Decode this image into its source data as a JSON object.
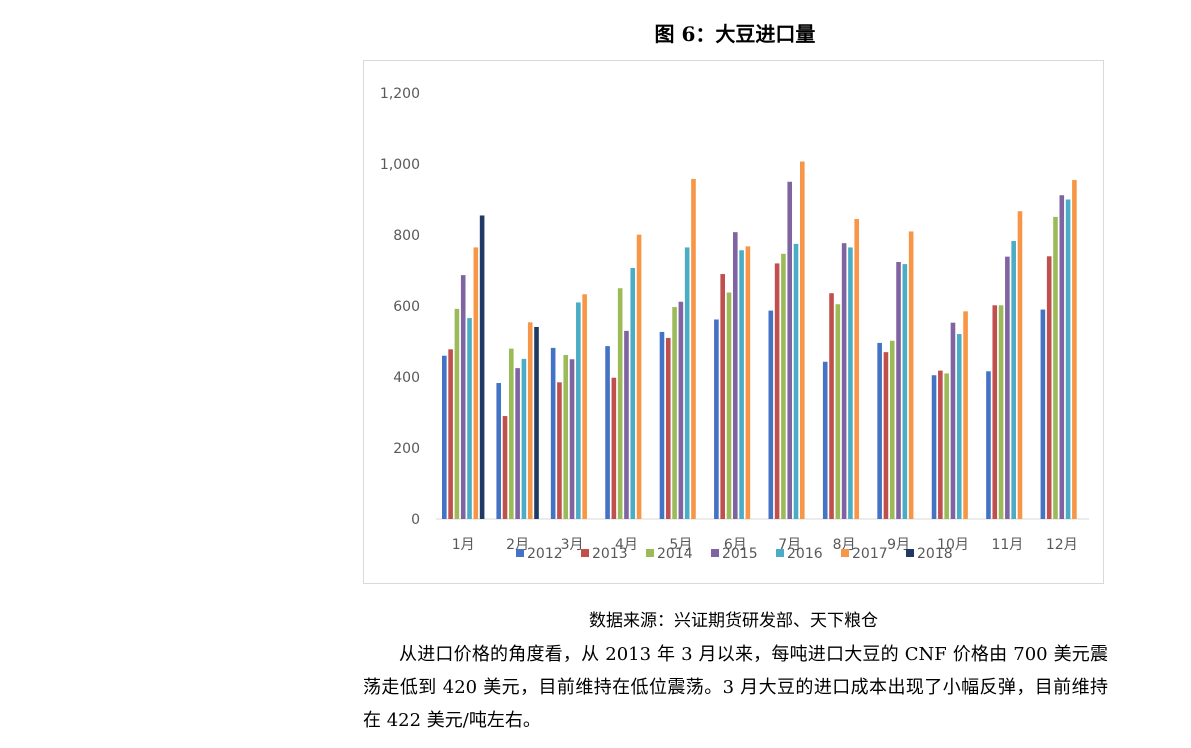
{
  "figure_title": "图 6：大豆进口量",
  "source": "数据来源：兴证期货研发部、天下粮仓",
  "paragraph": "从进口价格的角度看，从 2013 年 3 月以来，每吨进口大豆的 CNF 价格由 700 美元震荡走低到 420 美元，目前维持在低位震荡。3 月大豆的进口成本出现了小幅反弹，目前维持在 422 美元/吨左右。",
  "colors": {
    "2012": "#4472c4",
    "2013": "#c0504d",
    "2014": "#9bbb59",
    "2015": "#8064a2",
    "2016": "#4bacc6",
    "2017": "#f79646",
    "2018": "#1f3864"
  },
  "chart_data": {
    "type": "bar",
    "title": "图 6：大豆进口量",
    "categories": [
      "1月",
      "2月",
      "3月",
      "4月",
      "5月",
      "6月",
      "7月",
      "8月",
      "9月",
      "10月",
      "11月",
      "12月"
    ],
    "ylim": [
      0,
      1200
    ],
    "yticks": [
      "0",
      "200",
      "400",
      "600",
      "800",
      "1,000",
      "1,200"
    ],
    "grid": false,
    "legend": "bottom",
    "series": [
      {
        "name": "2012",
        "values": [
          460,
          383,
          482,
          487,
          527,
          562,
          587,
          443,
          496,
          405,
          416,
          590
        ]
      },
      {
        "name": "2013",
        "values": [
          478,
          290,
          385,
          398,
          510,
          690,
          720,
          636,
          470,
          418,
          602,
          740
        ]
      },
      {
        "name": "2014",
        "values": [
          592,
          480,
          462,
          650,
          597,
          638,
          747,
          605,
          502,
          410,
          602,
          851
        ]
      },
      {
        "name": "2015",
        "values": [
          687,
          425,
          450,
          530,
          612,
          808,
          950,
          777,
          724,
          553,
          739,
          912
        ]
      },
      {
        "name": "2016",
        "values": [
          566,
          451,
          610,
          707,
          765,
          757,
          775,
          765,
          718,
          521,
          783,
          900
        ]
      },
      {
        "name": "2017",
        "values": [
          765,
          554,
          633,
          801,
          958,
          768,
          1007,
          845,
          810,
          585,
          867,
          955
        ]
      },
      {
        "name": "2018",
        "values": [
          855,
          541,
          null,
          null,
          null,
          null,
          null,
          null,
          null,
          null,
          null,
          null
        ]
      }
    ]
  }
}
